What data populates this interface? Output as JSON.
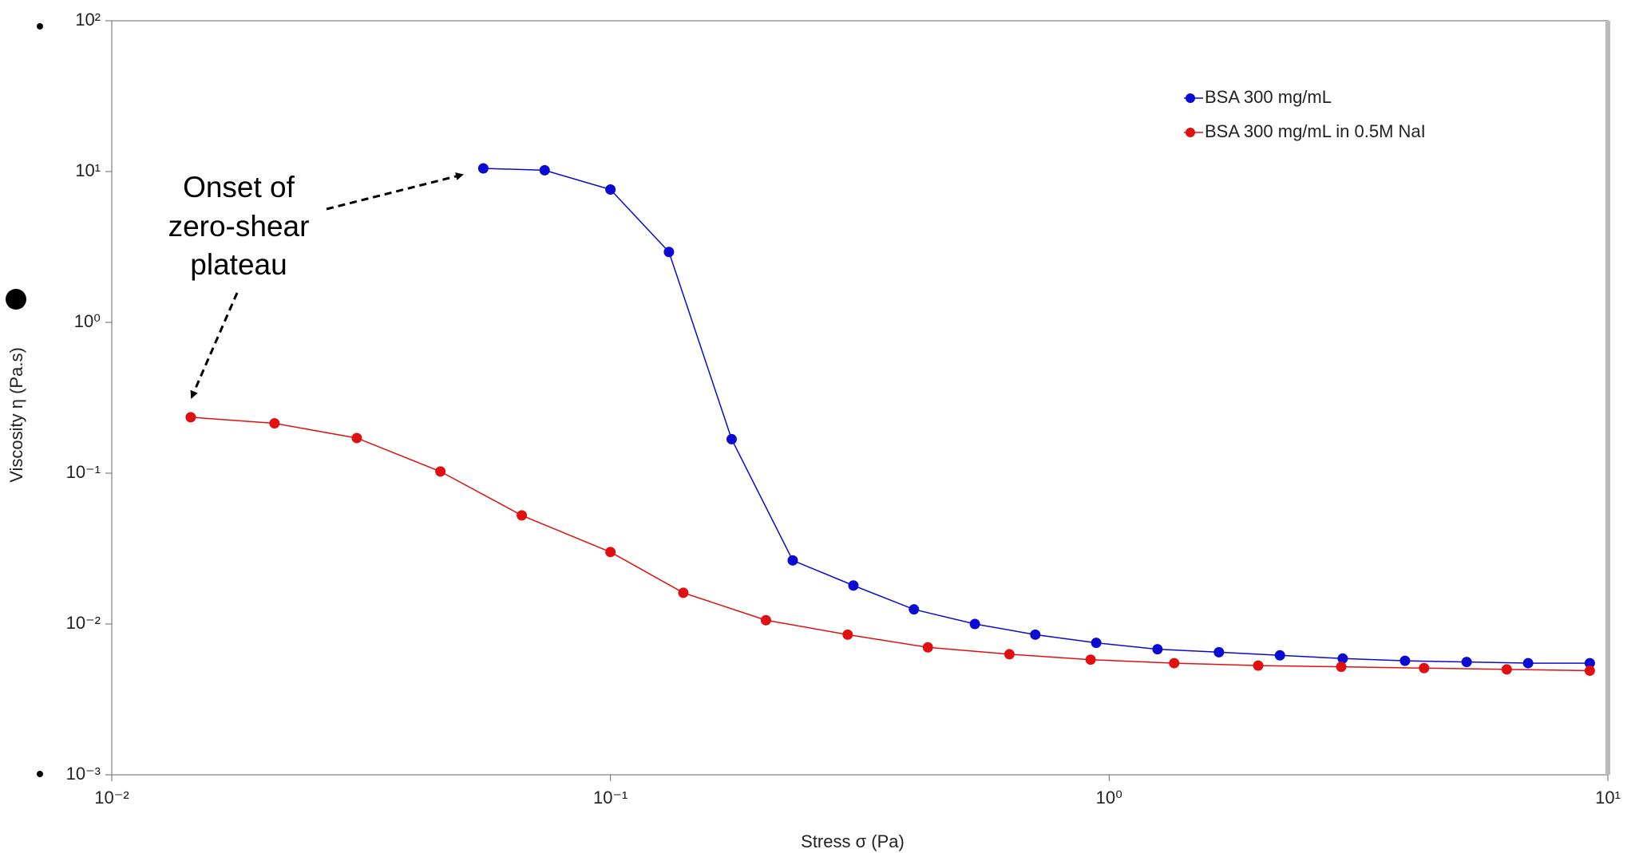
{
  "chart_data": {
    "type": "line",
    "xlabel": "Stress σ (Pa)",
    "ylabel": "Viscosity η (Pa.s)",
    "xscale": "log",
    "yscale": "log",
    "xlim": [
      0.01,
      10
    ],
    "ylim": [
      0.001,
      100
    ],
    "xticks": [
      {
        "value": 0.01,
        "label": "10⁻²"
      },
      {
        "value": 0.1,
        "label": "10⁻¹"
      },
      {
        "value": 1,
        "label": "10⁰"
      },
      {
        "value": 10,
        "label": "10¹"
      }
    ],
    "yticks": [
      {
        "value": 0.001,
        "label": "10⁻³"
      },
      {
        "value": 0.01,
        "label": "10⁻²"
      },
      {
        "value": 0.1,
        "label": "10⁻¹"
      },
      {
        "value": 1,
        "label": "10⁰"
      },
      {
        "value": 10,
        "label": "10¹"
      },
      {
        "value": 100,
        "label": "10²"
      }
    ],
    "legend": "upper right",
    "annotation": [
      "Onset of",
      "zero-shear",
      "plateau"
    ],
    "series": [
      {
        "name": "BSA 300 mg/mL",
        "color": "#0a0ad2",
        "x": [
          0.0556,
          0.0738,
          0.1,
          0.131,
          0.175,
          0.232,
          0.307,
          0.406,
          0.538,
          0.711,
          0.942,
          1.25,
          1.66,
          2.2,
          2.94,
          3.92,
          5.21,
          6.92,
          9.2
        ],
        "values": [
          10.5,
          10.2,
          7.6,
          2.93,
          0.168,
          0.0264,
          0.018,
          0.0125,
          0.01,
          0.0085,
          0.0075,
          0.0068,
          0.0065,
          0.0062,
          0.0059,
          0.0057,
          0.0056,
          0.0055,
          0.0055
        ]
      },
      {
        "name": "BSA 300 mg/mL in 0.5M NaI",
        "color": "#e01010",
        "x": [
          0.0144,
          0.0212,
          0.031,
          0.0456,
          0.0664,
          0.1,
          0.14,
          0.205,
          0.299,
          0.433,
          0.631,
          0.918,
          1.35,
          1.99,
          2.92,
          4.28,
          6.27,
          9.2
        ],
        "values": [
          0.235,
          0.214,
          0.171,
          0.1026,
          0.0525,
          0.03,
          0.0161,
          0.0106,
          0.0085,
          0.007,
          0.0063,
          0.0058,
          0.0055,
          0.0053,
          0.0052,
          0.0051,
          0.005,
          0.0049
        ]
      }
    ]
  }
}
